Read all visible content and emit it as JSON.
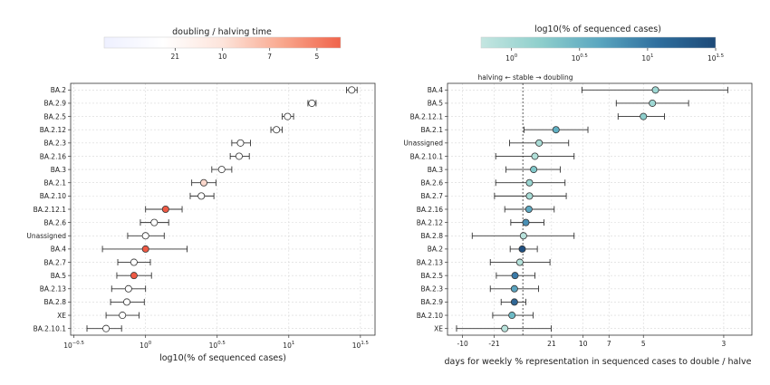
{
  "chart_data": [
    {
      "type": "scatter",
      "xlabel": "log10(% of sequenced cases)",
      "x_scale": "log",
      "xlim": [
        0.3,
        40
      ],
      "x_ticks": [
        {
          "value": 0.316,
          "base": "10",
          "exp": "−0.5"
        },
        {
          "value": 1,
          "base": "10",
          "exp": "0"
        },
        {
          "value": 3.162,
          "base": "10",
          "exp": "0.5"
        },
        {
          "value": 10,
          "base": "10",
          "exp": "1"
        },
        {
          "value": 31.62,
          "base": "10",
          "exp": "1.5"
        }
      ],
      "grid": true,
      "colorbar": {
        "title": "doubling / halving time",
        "ticks": [
          "21",
          "10",
          "7",
          "5"
        ],
        "colors": [
          "#eef0ff",
          "#ffffff",
          "#fde4db",
          "#f9a88e",
          "#f0634a"
        ]
      },
      "points": [
        {
          "label": "BA.2",
          "x": 27.5,
          "lo": 25.3,
          "hi": 30.0,
          "color": "#ffffff"
        },
        {
          "label": "BA.2.9",
          "x": 14.5,
          "lo": 13.6,
          "hi": 15.5,
          "color": "#ffffff"
        },
        {
          "label": "BA.2.5",
          "x": 9.8,
          "lo": 9.0,
          "hi": 10.8,
          "color": "#ffffff"
        },
        {
          "label": "BA.2.12",
          "x": 8.2,
          "lo": 7.5,
          "hi": 9.0,
          "color": "#ffffff"
        },
        {
          "label": "BA.2.3",
          "x": 4.6,
          "lo": 4.0,
          "hi": 5.4,
          "color": "#ffffff"
        },
        {
          "label": "BA.2.16",
          "x": 4.5,
          "lo": 3.9,
          "hi": 5.3,
          "color": "#ffffff"
        },
        {
          "label": "BA.3",
          "x": 3.4,
          "lo": 2.9,
          "hi": 4.0,
          "color": "#ffffff"
        },
        {
          "label": "BA.2.1",
          "x": 2.55,
          "lo": 2.1,
          "hi": 3.1,
          "color": "#fcd8cc"
        },
        {
          "label": "BA.2.10",
          "x": 2.45,
          "lo": 2.05,
          "hi": 3.0,
          "color": "#ffffff"
        },
        {
          "label": "BA.2.12.1",
          "x": 1.38,
          "lo": 1.0,
          "hi": 1.8,
          "color": "#ef5a45"
        },
        {
          "label": "BA.2.6",
          "x": 1.15,
          "lo": 0.92,
          "hi": 1.45,
          "color": "#ffffff"
        },
        {
          "label": "Unassigned",
          "x": 1.0,
          "lo": 0.75,
          "hi": 1.35,
          "color": "#ffffff"
        },
        {
          "label": "BA.4",
          "x": 1.0,
          "lo": 0.5,
          "hi": 1.95,
          "color": "#ef5a45"
        },
        {
          "label": "BA.2.7",
          "x": 0.83,
          "lo": 0.64,
          "hi": 1.08,
          "color": "#ffffff"
        },
        {
          "label": "BA.5",
          "x": 0.83,
          "lo": 0.63,
          "hi": 1.1,
          "color": "#ef5a45"
        },
        {
          "label": "BA.2.13",
          "x": 0.76,
          "lo": 0.58,
          "hi": 1.0,
          "color": "#ffffff"
        },
        {
          "label": "BA.2.8",
          "x": 0.74,
          "lo": 0.57,
          "hi": 0.98,
          "color": "#ffffff"
        },
        {
          "label": "XE",
          "x": 0.69,
          "lo": 0.53,
          "hi": 0.9,
          "color": "#ffffff"
        },
        {
          "label": "BA.2.10.1",
          "x": 0.53,
          "lo": 0.39,
          "hi": 0.68,
          "color": "#ffffff"
        }
      ]
    },
    {
      "type": "scatter",
      "xlabel": "days for weekly % representation in sequenced cases to double / halve",
      "annotation": "halving ← stable → doubling",
      "x_scale": "reciprocal",
      "xlim": [
        -0.125,
        0.38
      ],
      "x_ticks": [
        {
          "value": -0.1,
          "label": "-10"
        },
        {
          "value": -0.0476,
          "label": "-21"
        },
        {
          "value": 0.0476,
          "label": "21"
        },
        {
          "value": 0.1,
          "label": "10"
        },
        {
          "value": 0.1429,
          "label": "7"
        },
        {
          "value": 0.2,
          "label": "5"
        },
        {
          "value": 0.3333,
          "label": "3"
        }
      ],
      "stable_line": 0,
      "grid": true,
      "colorbar": {
        "title": "log10(% of sequenced cases)",
        "ticks": [
          {
            "base": "10",
            "exp": "0"
          },
          {
            "base": "10",
            "exp": "0.5"
          },
          {
            "base": "10",
            "exp": "1"
          },
          {
            "base": "10",
            "exp": "1.5"
          }
        ],
        "colors": [
          "#c4e6e1",
          "#8fcfcc",
          "#5ba7c0",
          "#2f6f9e",
          "#1d4a78"
        ]
      },
      "points": [
        {
          "label": "BA.4",
          "x": 0.22,
          "lo": 0.098,
          "hi": 0.34,
          "color": "#9ed8d4"
        },
        {
          "label": "BA.5",
          "x": 0.215,
          "lo": 0.155,
          "hi": 0.275,
          "color": "#9ed8d4"
        },
        {
          "label": "BA.2.12.1",
          "x": 0.2,
          "lo": 0.158,
          "hi": 0.235,
          "color": "#8dcfcd"
        },
        {
          "label": "BA.2.1",
          "x": 0.055,
          "lo": 0.002,
          "hi": 0.108,
          "color": "#60b0c3"
        },
        {
          "label": "Unassigned",
          "x": 0.027,
          "lo": -0.022,
          "hi": 0.076,
          "color": "#a9dcd6"
        },
        {
          "label": "BA.2.10.1",
          "x": 0.02,
          "lo": -0.045,
          "hi": 0.085,
          "color": "#b1e0d9"
        },
        {
          "label": "BA.3",
          "x": 0.018,
          "lo": -0.028,
          "hi": 0.062,
          "color": "#80c7c9"
        },
        {
          "label": "BA.2.6",
          "x": 0.011,
          "lo": -0.045,
          "hi": 0.07,
          "color": "#9ad6d2"
        },
        {
          "label": "BA.2.7",
          "x": 0.011,
          "lo": -0.047,
          "hi": 0.072,
          "color": "#a7dbd5"
        },
        {
          "label": "BA.2.16",
          "x": 0.01,
          "lo": -0.03,
          "hi": 0.052,
          "color": "#5ea9c2"
        },
        {
          "label": "BA.2.12",
          "x": 0.005,
          "lo": -0.02,
          "hi": 0.035,
          "color": "#4a90b5"
        },
        {
          "label": "BA.2.8",
          "x": 0.001,
          "lo": -0.084,
          "hi": 0.085,
          "color": "#b8e2dc"
        },
        {
          "label": "BA.2",
          "x": -0.001,
          "lo": -0.021,
          "hi": 0.024,
          "color": "#1f4f80"
        },
        {
          "label": "BA.2.13",
          "x": -0.005,
          "lo": -0.054,
          "hi": 0.045,
          "color": "#b4e1da"
        },
        {
          "label": "BA.2.5",
          "x": -0.013,
          "lo": -0.044,
          "hi": 0.02,
          "color": "#3a7aa8"
        },
        {
          "label": "BA.2.3",
          "x": -0.014,
          "lo": -0.054,
          "hi": 0.026,
          "color": "#5aa3be"
        },
        {
          "label": "BA.2.9",
          "x": -0.014,
          "lo": -0.036,
          "hi": 0.005,
          "color": "#2f6695"
        },
        {
          "label": "BA.2.10",
          "x": -0.018,
          "lo": -0.05,
          "hi": 0.017,
          "color": "#6dbac5"
        },
        {
          "label": "XE",
          "x": -0.03,
          "lo": -0.11,
          "hi": 0.047,
          "color": "#b9e3dc"
        }
      ]
    }
  ]
}
